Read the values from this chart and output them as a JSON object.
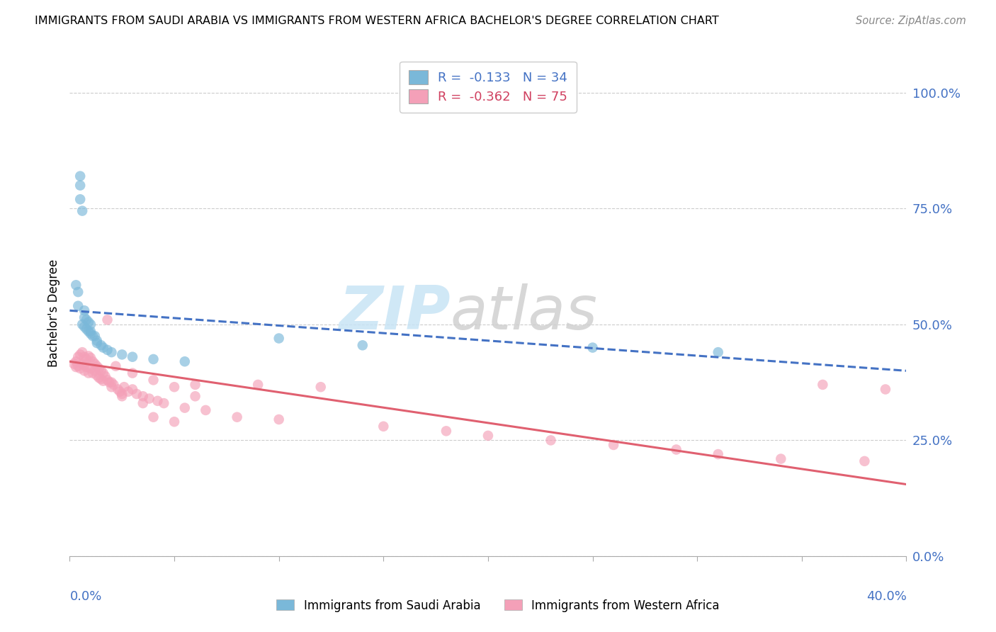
{
  "title": "IMMIGRANTS FROM SAUDI ARABIA VS IMMIGRANTS FROM WESTERN AFRICA BACHELOR'S DEGREE CORRELATION CHART",
  "source": "Source: ZipAtlas.com",
  "ylabel": "Bachelor's Degree",
  "right_yticks": [
    0.0,
    0.25,
    0.5,
    0.75,
    1.0
  ],
  "right_yticklabels": [
    "0.0%",
    "25.0%",
    "50.0%",
    "75.0%",
    "100.0%"
  ],
  "xmin": 0.0,
  "xmax": 0.4,
  "ymin": 0.0,
  "ymax": 1.05,
  "legend_r1": "R =  -0.133   N = 34",
  "legend_r2": "R =  -0.362   N = 75",
  "color_saudi": "#7ab8d9",
  "color_western": "#f4a0b8",
  "line_color_saudi": "#4472c4",
  "line_color_western": "#e06070",
  "saudi_x": [
    0.003,
    0.004,
    0.004,
    0.005,
    0.005,
    0.005,
    0.006,
    0.006,
    0.007,
    0.007,
    0.007,
    0.008,
    0.008,
    0.009,
    0.009,
    0.01,
    0.01,
    0.01,
    0.011,
    0.012,
    0.013,
    0.013,
    0.015,
    0.016,
    0.018,
    0.02,
    0.025,
    0.03,
    0.04,
    0.055,
    0.1,
    0.14,
    0.25,
    0.31
  ],
  "saudi_y": [
    0.585,
    0.57,
    0.54,
    0.82,
    0.8,
    0.77,
    0.745,
    0.5,
    0.53,
    0.515,
    0.495,
    0.51,
    0.49,
    0.505,
    0.485,
    0.5,
    0.485,
    0.48,
    0.475,
    0.475,
    0.465,
    0.46,
    0.455,
    0.45,
    0.445,
    0.44,
    0.435,
    0.43,
    0.425,
    0.42,
    0.47,
    0.455,
    0.45,
    0.44
  ],
  "western_x": [
    0.002,
    0.003,
    0.003,
    0.004,
    0.004,
    0.005,
    0.005,
    0.006,
    0.006,
    0.007,
    0.007,
    0.007,
    0.008,
    0.008,
    0.009,
    0.009,
    0.01,
    0.01,
    0.011,
    0.011,
    0.012,
    0.012,
    0.013,
    0.013,
    0.014,
    0.014,
    0.015,
    0.015,
    0.016,
    0.016,
    0.017,
    0.018,
    0.018,
    0.019,
    0.02,
    0.02,
    0.021,
    0.022,
    0.023,
    0.024,
    0.025,
    0.025,
    0.026,
    0.028,
    0.03,
    0.03,
    0.032,
    0.035,
    0.038,
    0.04,
    0.042,
    0.045,
    0.05,
    0.055,
    0.06,
    0.065,
    0.08,
    0.09,
    0.1,
    0.12,
    0.15,
    0.18,
    0.2,
    0.23,
    0.26,
    0.29,
    0.31,
    0.34,
    0.36,
    0.38,
    0.39,
    0.035,
    0.04,
    0.05,
    0.06
  ],
  "western_y": [
    0.415,
    0.42,
    0.408,
    0.43,
    0.41,
    0.435,
    0.405,
    0.44,
    0.415,
    0.43,
    0.412,
    0.4,
    0.425,
    0.408,
    0.432,
    0.395,
    0.428,
    0.405,
    0.42,
    0.395,
    0.415,
    0.4,
    0.41,
    0.39,
    0.405,
    0.385,
    0.4,
    0.382,
    0.395,
    0.378,
    0.388,
    0.51,
    0.38,
    0.375,
    0.375,
    0.365,
    0.37,
    0.41,
    0.36,
    0.355,
    0.35,
    0.345,
    0.365,
    0.355,
    0.395,
    0.36,
    0.35,
    0.345,
    0.34,
    0.38,
    0.335,
    0.33,
    0.365,
    0.32,
    0.37,
    0.315,
    0.3,
    0.37,
    0.295,
    0.365,
    0.28,
    0.27,
    0.26,
    0.25,
    0.24,
    0.23,
    0.22,
    0.21,
    0.37,
    0.205,
    0.36,
    0.33,
    0.3,
    0.29,
    0.345
  ]
}
